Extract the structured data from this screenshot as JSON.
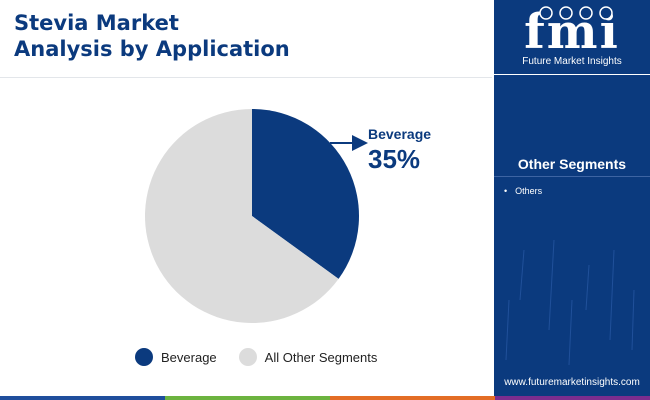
{
  "title": {
    "line1": "Stevia Market",
    "line2": "Analysis by Application"
  },
  "chart_data": {
    "type": "pie",
    "categories": [
      "Beverage",
      "All Other Segments"
    ],
    "values": [
      35,
      65
    ],
    "colors": [
      "#0b3a7e",
      "#dcdcdc"
    ],
    "callout": {
      "label": "Beverage",
      "value": "35%"
    },
    "legend_position": "bottom"
  },
  "sidebar": {
    "brand_mark": "fmi",
    "brand_caption": "Future Market Insights",
    "panel_heading": "Other Segments",
    "segments": [
      "Others"
    ],
    "footer_url": "www.futuremarketinsights.com",
    "background": "#0b3a7e"
  },
  "footer_bar_colors": [
    "#1f4e9c",
    "#6cb33f",
    "#e36d25",
    "#7b2d8e"
  ]
}
